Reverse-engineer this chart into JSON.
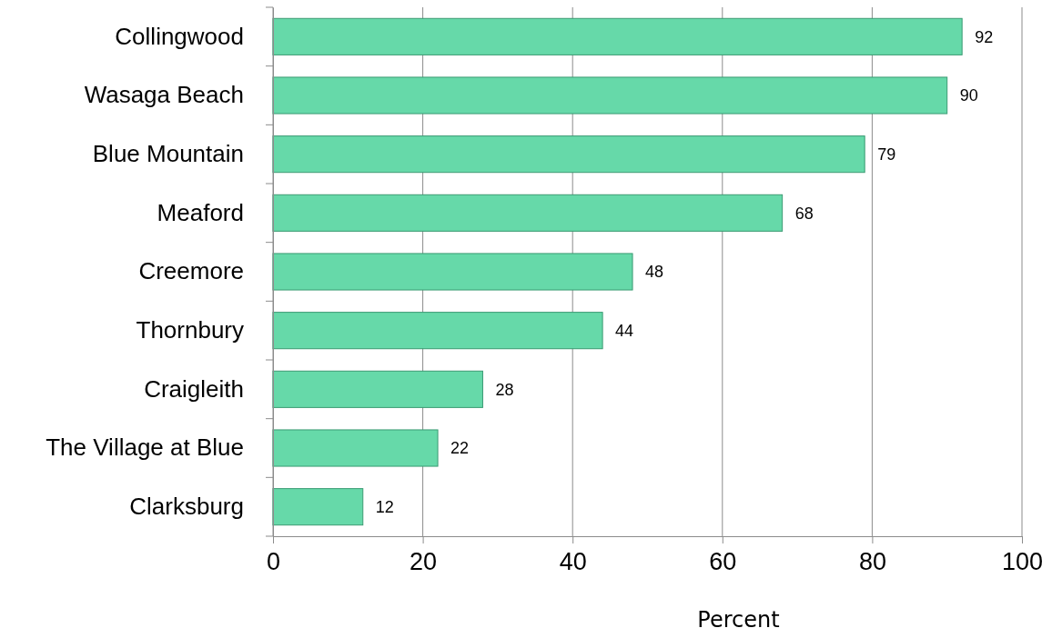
{
  "chart_data": {
    "type": "bar",
    "orientation": "horizontal",
    "xlabel": "Percent",
    "categories": [
      "Collingwood",
      "Wasaga Beach",
      "Blue Mountain",
      "Meaford",
      "Creemore",
      "Thornbury",
      "Craigleith",
      "The Village at Blue",
      "Clarksburg"
    ],
    "values": [
      92,
      90,
      79,
      68,
      48,
      44,
      28,
      22,
      12
    ],
    "color": "#66d9a9",
    "xlim": [
      0,
      100
    ],
    "xticks": [
      0,
      20,
      40,
      60,
      80,
      100
    ],
    "grid": "x",
    "data_labels": true
  }
}
